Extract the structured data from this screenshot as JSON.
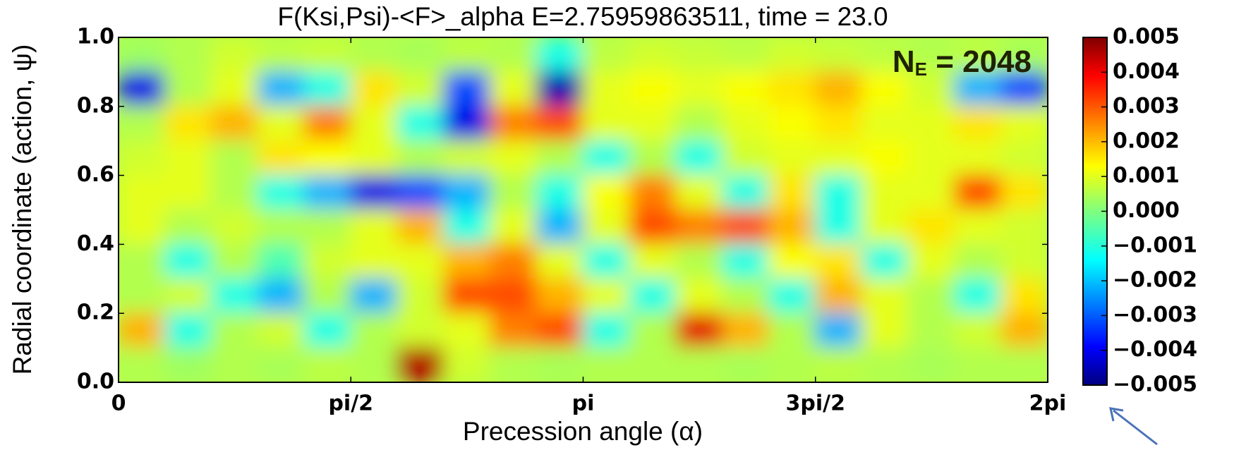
{
  "chart_data": {
    "type": "heatmap",
    "title": "F(Ksi,Psi)-<F>_alpha E=2.75959863511, time = 23.0",
    "x_label": "Precession angle (α)",
    "y_label": "Radial coordinate (action, ψ)",
    "xlim": [
      0,
      6.2832
    ],
    "xticks": [
      {
        "value": 0,
        "label": "0"
      },
      {
        "value": 1.5708,
        "label": "pi/2"
      },
      {
        "value": 3.1416,
        "label": "pi"
      },
      {
        "value": 4.7124,
        "label": "3pi/2"
      },
      {
        "value": 6.2832,
        "label": "2pi"
      }
    ],
    "ylim": [
      0,
      1
    ],
    "yticks": [
      {
        "value": 0,
        "label": "0.0"
      },
      0.2,
      0.4,
      0.6,
      0.8,
      {
        "value": 1,
        "label": "1.0"
      }
    ],
    "zlim": [
      -0.005,
      0.005
    ],
    "zticks": [
      0.005,
      0.004,
      0.003,
      0.002,
      0.001,
      {
        "value": 0,
        "label": "0.000"
      },
      {
        "value": -0.001,
        "label": "−0.001"
      },
      {
        "value": -0.002,
        "label": "−0.002"
      },
      {
        "value": -0.003,
        "label": "−0.003"
      },
      {
        "value": -0.004,
        "label": "−0.004"
      },
      {
        "value": -0.005,
        "label": "−0.005"
      }
    ],
    "colormap": "jet",
    "annotation": {
      "text": "N",
      "subscript": "E",
      "suffix": " = 2048"
    },
    "z": [
      [
        0.0003,
        0.0005,
        0.0008,
        0.0006,
        0.0007,
        0.0005,
        0.0004,
        0.0006,
        0.0005,
        -0.001,
        0.0006,
        0.0008,
        0.0007,
        0.0006,
        0.0008,
        0.0007,
        0.0006,
        0.0005,
        0.0006,
        0.0004
      ],
      [
        -0.004,
        0.0005,
        0.001,
        -0.002,
        -0.001,
        0.0015,
        0.0008,
        -0.003,
        0.001,
        -0.0045,
        0.001,
        0.0012,
        0.001,
        0.0012,
        0.0015,
        0.002,
        0.0012,
        0.0008,
        -0.002,
        -0.003
      ],
      [
        0.0005,
        0.0015,
        0.002,
        0.001,
        0.0025,
        0.001,
        -0.001,
        -0.004,
        0.0025,
        0.003,
        0.001,
        0.001,
        0.0005,
        0.001,
        0.0012,
        0.0015,
        0.001,
        0.001,
        0.0015,
        0.001
      ],
      [
        0.0008,
        0.001,
        0.0005,
        0.0015,
        0.0012,
        0.001,
        0.0005,
        0.0008,
        0.001,
        0.0005,
        -0.001,
        0.0005,
        -0.001,
        0.0008,
        0.001,
        0.001,
        0.0012,
        0.001,
        0.001,
        0.0008
      ],
      [
        0.001,
        0.001,
        0.0005,
        -0.001,
        -0.002,
        -0.004,
        -0.003,
        -0.002,
        0.0005,
        -0.001,
        0.0012,
        0.0025,
        0.001,
        -0.001,
        0.0015,
        -0.001,
        0.001,
        0.001,
        0.003,
        0.0015
      ],
      [
        0.001,
        0.0005,
        0.0008,
        0.0005,
        0.0005,
        0.001,
        0.002,
        -0.001,
        0.001,
        -0.002,
        0.001,
        0.003,
        0.0025,
        0.003,
        0.002,
        -0.001,
        0.001,
        0.0015,
        0.001,
        0.0008
      ],
      [
        0.0005,
        -0.001,
        0.0005,
        -0.0005,
        0.0008,
        0.001,
        0.001,
        0.002,
        0.0025,
        0.001,
        -0.001,
        0.001,
        0.0005,
        -0.001,
        0.0012,
        0.0015,
        -0.001,
        0.001,
        0.0005,
        0.0008
      ],
      [
        0.0005,
        0.0008,
        -0.001,
        -0.002,
        0.0005,
        -0.002,
        0.0008,
        0.003,
        0.003,
        0.002,
        0.001,
        -0.001,
        0.001,
        0.0005,
        -0.001,
        0.002,
        0.001,
        0.0005,
        -0.001,
        0.0015
      ],
      [
        0.002,
        -0.001,
        0.0005,
        0.0008,
        -0.001,
        0.0005,
        0.0008,
        0.001,
        0.0025,
        0.003,
        -0.001,
        0.0005,
        0.004,
        0.002,
        0.0005,
        -0.002,
        0.001,
        0.0005,
        0.0008,
        0.002
      ],
      [
        0.0005,
        0.0003,
        0.0005,
        0.0004,
        0.0006,
        0.0005,
        0.0045,
        0.0008,
        0.0005,
        0.0004,
        0.0005,
        0.0005,
        0.0005,
        0.0004,
        0.0005,
        0.0006,
        0.0005,
        0.0004,
        0.0005,
        0.0005
      ]
    ]
  }
}
